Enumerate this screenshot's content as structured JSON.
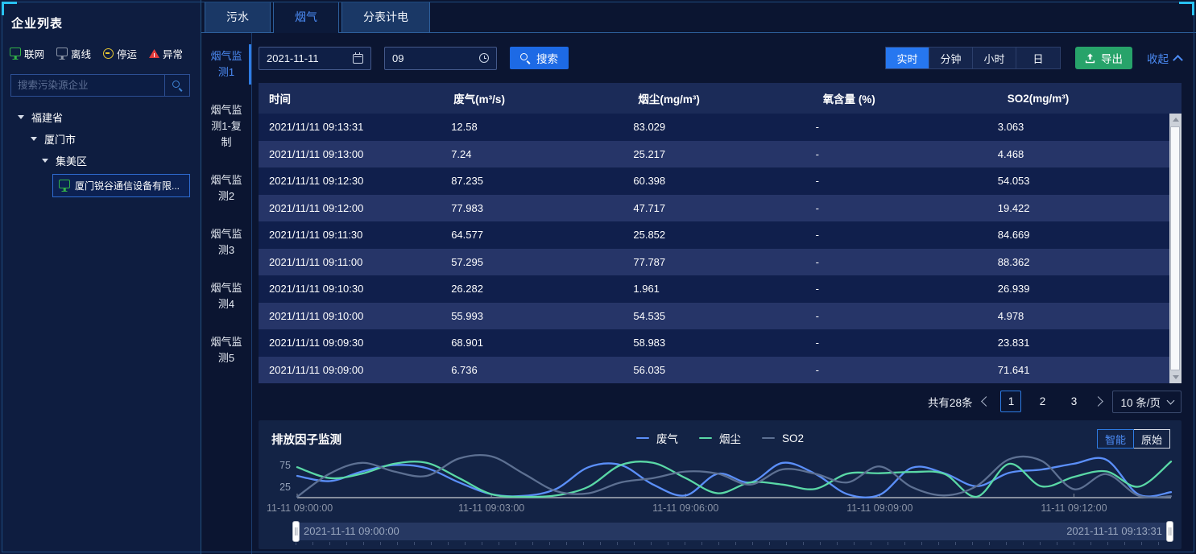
{
  "colors": {
    "accent": "#2e7ce4",
    "active_text": "#4d8df7",
    "export_green": "#27a36a",
    "corner_cyan": "#29c2f2",
    "online_green": "#33b348",
    "offline_gray": "#8b95a8",
    "stopped_yellow": "#e8c832",
    "abnormal_red": "#e23b3b"
  },
  "sidebar": {
    "title": "企业列表",
    "legend": [
      {
        "label": "联网",
        "status": "online"
      },
      {
        "label": "离线",
        "status": "offline"
      },
      {
        "label": "停运",
        "status": "stopped"
      },
      {
        "label": "异常",
        "status": "abnormal"
      }
    ],
    "search_placeholder": "搜索污染源企业",
    "tree": {
      "province": "福建省",
      "city": "厦门市",
      "district": "集美区",
      "enterprise": "厦门锐谷通信设备有限..."
    }
  },
  "tabs": [
    {
      "label": "污水",
      "active": false
    },
    {
      "label": "烟气",
      "active": true
    },
    {
      "label": "分表计电",
      "active": false
    }
  ],
  "subtabs": [
    {
      "label": "烟气监测1",
      "active": true
    },
    {
      "label": "烟气监测1-复制",
      "active": false
    },
    {
      "label": "烟气监测2",
      "active": false
    },
    {
      "label": "烟气监测3",
      "active": false
    },
    {
      "label": "烟气监测4",
      "active": false
    },
    {
      "label": "烟气监测5",
      "active": false
    }
  ],
  "toolbar": {
    "date_value": "2021-11-11",
    "time_value": "09",
    "search_label": "搜索",
    "granularity": [
      {
        "label": "实时",
        "active": true
      },
      {
        "label": "分钟",
        "active": false
      },
      {
        "label": "小时",
        "active": false
      },
      {
        "label": "日",
        "active": false
      }
    ],
    "export_label": "导出",
    "collapse_label": "收起"
  },
  "table": {
    "columns": [
      "时间",
      "废气(m³/s)",
      "烟尘(mg/m³)",
      "氧含量 (%)",
      "SO2(mg/m³)"
    ],
    "rows": [
      [
        "2021/11/11 09:13:31",
        "12.58",
        "83.029",
        "-",
        "3.063"
      ],
      [
        "2021/11/11 09:13:00",
        "7.24",
        "25.217",
        "-",
        "4.468"
      ],
      [
        "2021/11/11 09:12:30",
        "87.235",
        "60.398",
        "-",
        "54.053"
      ],
      [
        "2021/11/11 09:12:00",
        "77.983",
        "47.717",
        "-",
        "19.422"
      ],
      [
        "2021/11/11 09:11:30",
        "64.577",
        "25.852",
        "-",
        "84.669"
      ],
      [
        "2021/11/11 09:11:00",
        "57.295",
        "77.787",
        "-",
        "88.362"
      ],
      [
        "2021/11/11 09:10:30",
        "26.282",
        "1.961",
        "-",
        "26.939"
      ],
      [
        "2021/11/11 09:10:00",
        "55.993",
        "54.535",
        "-",
        "4.978"
      ],
      [
        "2021/11/11 09:09:30",
        "68.901",
        "58.983",
        "-",
        "23.831"
      ],
      [
        "2021/11/11 09:09:00",
        "6.736",
        "56.035",
        "-",
        "71.641"
      ]
    ]
  },
  "pagination": {
    "total_text": "共有28条",
    "pages": [
      "1",
      "2",
      "3"
    ],
    "active_page": "1",
    "page_size": "10 条/页"
  },
  "chart": {
    "title": "排放因子监测",
    "legend": [
      {
        "label": "废气",
        "color": "#5b8ff9"
      },
      {
        "label": "烟尘",
        "color": "#5ad8a6"
      },
      {
        "label": "SO2",
        "color": "#5d7092"
      }
    ],
    "mode_buttons": [
      {
        "label": "智能",
        "active": true
      },
      {
        "label": "原始",
        "active": false
      }
    ]
  },
  "chart_data": {
    "type": "line",
    "title": "排放因子监测",
    "x": [
      "09:00:00",
      "09:00:30",
      "09:01:00",
      "09:01:30",
      "09:02:00",
      "09:02:30",
      "09:03:00",
      "09:03:30",
      "09:04:00",
      "09:04:30",
      "09:05:00",
      "09:05:30",
      "09:06:00",
      "09:06:30",
      "09:07:00",
      "09:07:30",
      "09:08:00",
      "09:08:30",
      "09:09:00",
      "09:09:30",
      "09:10:00",
      "09:10:30",
      "09:11:00",
      "09:11:30",
      "09:12:00",
      "09:12:30",
      "09:13:00",
      "09:13:31"
    ],
    "x_tick_indices": [
      0,
      6,
      12,
      18,
      24
    ],
    "x_tick_labels": [
      "11-11 09:00:00",
      "11-11 09:03:00",
      "11-11 09:06:00",
      "11-11 09:09:00",
      "11-11 09:12:00"
    ],
    "yticks": [
      25,
      75
    ],
    "ylim": [
      0,
      100
    ],
    "grid": false,
    "legend_position": "top-center",
    "series": [
      {
        "name": "废气",
        "color": "#5b8ff9",
        "values": [
          50,
          38,
          60,
          75,
          68,
          35,
          8,
          4,
          20,
          70,
          75,
          30,
          5,
          55,
          35,
          80,
          55,
          8,
          6.736,
          68.901,
          55.993,
          26.282,
          57.295,
          64.577,
          77.983,
          87.235,
          7.24,
          12.58
        ]
      },
      {
        "name": "烟尘",
        "color": "#5ad8a6",
        "values": [
          70,
          45,
          55,
          78,
          80,
          45,
          8,
          2,
          5,
          25,
          75,
          80,
          45,
          10,
          35,
          30,
          20,
          55,
          56.035,
          58.983,
          54.535,
          1.961,
          77.787,
          25.852,
          47.717,
          60.398,
          25.217,
          83.029
        ]
      },
      {
        "name": "SO2",
        "color": "#5d7092",
        "values": [
          2,
          55,
          80,
          60,
          50,
          90,
          95,
          55,
          15,
          10,
          35,
          45,
          60,
          55,
          30,
          65,
          55,
          35,
          71.641,
          23.831,
          4.978,
          26.939,
          88.362,
          84.669,
          19.422,
          54.053,
          4.468,
          3.063
        ]
      }
    ],
    "slider": {
      "start_label": "2021-11-11 09:00:00",
      "end_label": "2021-11-11 09:13:31"
    }
  }
}
